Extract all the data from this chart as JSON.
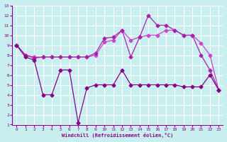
{
  "xlabel": "Windchill (Refroidissement éolien,°C)",
  "bg_color": "#c8eef0",
  "grid_color": "#ffffff",
  "xlim": [
    -0.5,
    23.5
  ],
  "ylim": [
    1,
    13
  ],
  "xticks": [
    0,
    1,
    2,
    3,
    4,
    5,
    6,
    7,
    8,
    9,
    10,
    11,
    12,
    13,
    14,
    15,
    16,
    17,
    18,
    19,
    20,
    21,
    22,
    23
  ],
  "yticks": [
    1,
    2,
    3,
    4,
    5,
    6,
    7,
    8,
    9,
    10,
    11,
    12,
    13
  ],
  "series": [
    {
      "x": [
        0,
        1,
        2,
        3,
        4,
        5,
        6,
        7,
        8,
        9,
        10,
        11,
        12,
        13,
        14,
        15,
        16,
        17,
        18,
        19,
        20,
        21,
        22,
        23
      ],
      "y": [
        9.0,
        8.0,
        7.8,
        7.8,
        7.8,
        7.8,
        7.8,
        7.8,
        7.8,
        8.0,
        9.3,
        9.5,
        10.5,
        9.5,
        9.8,
        10.0,
        10.0,
        10.5,
        10.5,
        10.0,
        10.0,
        9.2,
        8.0,
        4.5
      ],
      "color": "#cc44cc",
      "marker": "D",
      "markersize": 2.5,
      "linewidth": 0.9
    },
    {
      "x": [
        0,
        1,
        2,
        3,
        4,
        5,
        6,
        7,
        8,
        9,
        10,
        11,
        12,
        13,
        14,
        15,
        16,
        17,
        18,
        19,
        20,
        21,
        22,
        23
      ],
      "y": [
        9.0,
        8.0,
        7.7,
        7.8,
        7.8,
        7.8,
        7.8,
        7.8,
        7.8,
        8.2,
        9.7,
        9.8,
        10.5,
        7.8,
        9.8,
        12.0,
        11.0,
        11.0,
        10.5,
        10.0,
        10.0,
        8.0,
        6.5,
        4.5
      ],
      "color": "#aa22aa",
      "marker": "D",
      "markersize": 2.5,
      "linewidth": 0.9
    },
    {
      "x": [
        0,
        1,
        2,
        3,
        4,
        5,
        6,
        7,
        8,
        9,
        10,
        11,
        12,
        13,
        14,
        15,
        16,
        17,
        18,
        19,
        20,
        21,
        22,
        23
      ],
      "y": [
        9.0,
        7.8,
        7.5,
        4.0,
        4.0,
        6.5,
        6.5,
        1.2,
        4.7,
        5.0,
        5.0,
        5.0,
        6.5,
        5.0,
        5.0,
        5.0,
        5.0,
        5.0,
        5.0,
        4.8,
        4.8,
        4.8,
        6.0,
        4.5
      ],
      "color": "#880088",
      "marker": "D",
      "markersize": 2.5,
      "linewidth": 0.9
    }
  ]
}
